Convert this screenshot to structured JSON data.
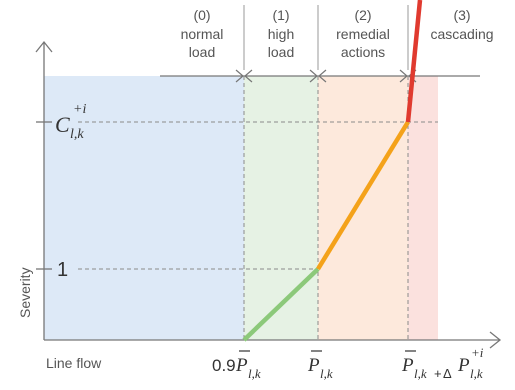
{
  "regions": [
    {
      "index": "(0)",
      "lines": [
        "normal",
        "load"
      ],
      "color": "#dde9f7"
    },
    {
      "index": "(1)",
      "lines": [
        "high",
        "load"
      ],
      "color": "#e6f2e4"
    },
    {
      "index": "(2)",
      "lines": [
        "remedial",
        "actions"
      ],
      "color": "#fde9dc"
    },
    {
      "index": "(3)",
      "lines": [
        "cascading"
      ],
      "color": "#fbe1de"
    }
  ],
  "axes": {
    "y_label": "Severity",
    "x_label": "Line flow",
    "y_tick_one": "1",
    "y_tick_c": {
      "base": "C",
      "sub": "l,k",
      "sup": "+i"
    },
    "x_ticks": [
      {
        "prefix": "0.9",
        "base": "P",
        "sub": "l,k"
      },
      {
        "prefix": "",
        "base": "P",
        "sub": "l,k"
      },
      {
        "prefix": "",
        "base": "P",
        "sub": "l,k",
        "plus": "+",
        "delta": "Δ",
        "delta_base": "P",
        "delta_sub": "l,k",
        "delta_sup": "+i"
      }
    ]
  },
  "curve_colors": {
    "green": "#8cc97a",
    "orange": "#f4a21a",
    "red": "#e03a2f",
    "guide": "#8a8a8a",
    "axis": "#777777"
  }
}
